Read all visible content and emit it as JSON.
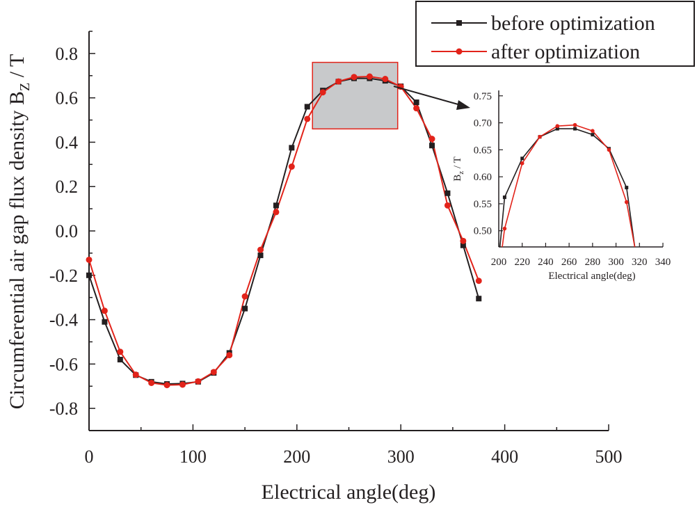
{
  "chart_data": [
    {
      "type": "line",
      "title": "",
      "xlabel": "Electrical angle(deg)",
      "ylabel_main": "Circumferential air gap flux density B",
      "ylabel_sub": "Z",
      "ylabel_unit": "/ T",
      "xlim": [
        0,
        500
      ],
      "ylim": [
        -0.9,
        0.9
      ],
      "xticks": [
        0,
        100,
        200,
        300,
        400,
        500
      ],
      "yticks": [
        -0.8,
        -0.6,
        -0.4,
        -0.2,
        0.0,
        0.2,
        0.4,
        0.6,
        0.8
      ],
      "xtick_labels": [
        "0",
        "100",
        "200",
        "300",
        "400",
        "500"
      ],
      "ytick_labels": [
        "-0.8",
        "-0.6",
        "-0.4",
        "-0.2",
        "0.0",
        "0.2",
        "0.4",
        "0.6",
        "0.8"
      ],
      "x": [
        0,
        15,
        30,
        45,
        60,
        75,
        90,
        105,
        120,
        135,
        150,
        165,
        180,
        195,
        210,
        225,
        240,
        255,
        270,
        285,
        300,
        315,
        330,
        345,
        360,
        375
      ],
      "series": [
        {
          "name": "before optimization",
          "color": "#231f20",
          "marker": "square",
          "values": [
            -0.2,
            -0.41,
            -0.58,
            -0.65,
            -0.68,
            -0.69,
            -0.688,
            -0.68,
            -0.64,
            -0.55,
            -0.35,
            -0.11,
            0.115,
            0.375,
            0.56,
            0.633,
            0.673,
            0.688,
            0.688,
            0.677,
            0.652,
            0.58,
            0.385,
            0.17,
            -0.065,
            -0.305
          ]
        },
        {
          "name": "after optimization",
          "color": "#e2231a",
          "marker": "circle",
          "values": [
            -0.13,
            -0.36,
            -0.545,
            -0.648,
            -0.685,
            -0.695,
            -0.693,
            -0.678,
            -0.636,
            -0.56,
            -0.295,
            -0.085,
            0.085,
            0.29,
            0.505,
            0.625,
            0.674,
            0.694,
            0.696,
            0.685,
            0.65,
            0.553,
            0.415,
            0.115,
            -0.045,
            -0.225
          ]
        }
      ],
      "legend": {
        "placement": "top-right",
        "entries": [
          "before optimization",
          "after optimization"
        ]
      },
      "zoom_region": {
        "xrange": [
          215,
          297
        ],
        "yrange": [
          0.46,
          0.76
        ],
        "fill": "#c8c9cb",
        "border": "#e2231a"
      }
    },
    {
      "type": "line",
      "title": "",
      "xlabel": "Electrical angle(deg)",
      "ylabel_main": "B",
      "ylabel_sub": "z",
      "ylabel_unit": "/ T",
      "xlim": [
        200,
        340
      ],
      "ylim": [
        0.47,
        0.76
      ],
      "xticks": [
        200,
        220,
        240,
        260,
        280,
        300,
        320,
        340
      ],
      "yticks": [
        0.5,
        0.55,
        0.6,
        0.65,
        0.7,
        0.75
      ],
      "xtick_labels": [
        "200",
        "220",
        "240",
        "260",
        "280",
        "300",
        "320",
        "340"
      ],
      "ytick_labels": [
        "0.50",
        "0.55",
        "0.60",
        "0.65",
        "0.70",
        "0.75"
      ],
      "series": [
        {
          "name": "before optimization",
          "color": "#231f20",
          "marker": "square",
          "x": [
            201,
            205,
            220,
            235,
            250,
            265,
            280,
            294,
            309,
            316
          ],
          "values": [
            0.47,
            0.562,
            0.634,
            0.674,
            0.689,
            0.689,
            0.678,
            0.652,
            0.58,
            0.47
          ]
        },
        {
          "name": "after optimization",
          "color": "#e2231a",
          "marker": "circle",
          "x": [
            203,
            205,
            220,
            235,
            250,
            265,
            280,
            294,
            309,
            316
          ],
          "values": [
            0.47,
            0.504,
            0.625,
            0.674,
            0.694,
            0.696,
            0.685,
            0.65,
            0.553,
            0.47
          ]
        }
      ]
    }
  ]
}
